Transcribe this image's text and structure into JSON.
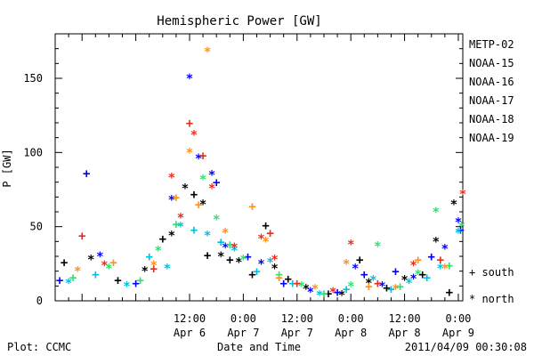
{
  "chart_data": {
    "type": "scatter",
    "title": "Hemispheric Power [GW]",
    "xlabel": "Date and Time",
    "ylabel": "P [GW]",
    "xlim": [
      "2011-04-05T06:00",
      "2011-04-09T01:00"
    ],
    "ylim": [
      0,
      180
    ],
    "yticks": [
      0,
      50,
      100,
      150
    ],
    "xticks": [
      {
        "t": "2011-04-06T12:00",
        "l1": "12:00",
        "l2": "Apr 6"
      },
      {
        "t": "2011-04-07T00:00",
        "l1": "0:00",
        "l2": "Apr 7"
      },
      {
        "t": "2011-04-07T12:00",
        "l1": "12:00",
        "l2": "Apr 7"
      },
      {
        "t": "2011-04-08T00:00",
        "l1": "0:00",
        "l2": "Apr 8"
      },
      {
        "t": "2011-04-08T12:00",
        "l1": "12:00",
        "l2": "Apr 8"
      },
      {
        "t": "2011-04-09T00:00",
        "l1": "0:00",
        "l2": "Apr 9"
      }
    ],
    "grid": false,
    "legend_placement": "right",
    "series": [
      {
        "name": "METP-02",
        "color": "#000000",
        "points": [
          [
            "2011-04-05T08:00",
            26,
            "+"
          ],
          [
            "2011-04-05T14:00",
            28,
            "*"
          ],
          [
            "2011-04-05T20:00",
            14,
            "+"
          ],
          [
            "2011-04-06T02:00",
            20,
            "*"
          ],
          [
            "2011-04-06T06:00",
            42,
            "+"
          ],
          [
            "2011-04-06T08:00",
            44,
            "*"
          ],
          [
            "2011-04-06T11:00",
            76,
            "*"
          ],
          [
            "2011-04-06T13:00",
            72,
            "+"
          ],
          [
            "2011-04-06T15:00",
            65,
            "*"
          ],
          [
            "2011-04-06T16:00",
            31,
            "+"
          ],
          [
            "2011-04-06T19:00",
            30,
            "*"
          ],
          [
            "2011-04-06T21:00",
            28,
            "+"
          ],
          [
            "2011-04-06T23:00",
            26,
            "*"
          ],
          [
            "2011-04-07T02:00",
            18,
            "+"
          ],
          [
            "2011-04-07T05:00",
            51,
            "+"
          ],
          [
            "2011-04-07T07:00",
            22,
            "*"
          ],
          [
            "2011-04-07T10:00",
            15,
            "+"
          ],
          [
            "2011-04-07T14:00",
            8,
            "*"
          ],
          [
            "2011-04-07T19:00",
            5,
            "+"
          ],
          [
            "2011-04-07T22:00",
            4,
            "*"
          ],
          [
            "2011-04-08T02:00",
            28,
            "+"
          ],
          [
            "2011-04-08T04:00",
            12,
            "*"
          ],
          [
            "2011-04-08T08:00",
            9,
            "+"
          ],
          [
            "2011-04-08T12:00",
            14,
            "*"
          ],
          [
            "2011-04-08T16:00",
            18,
            "+"
          ],
          [
            "2011-04-08T19:00",
            40,
            "*"
          ],
          [
            "2011-04-08T22:00",
            6,
            "+"
          ],
          [
            "2011-04-08T23:00",
            65,
            "*"
          ]
        ]
      },
      {
        "name": "NOAA-15",
        "color": "#0000ff",
        "points": [
          [
            "2011-04-05T07:00",
            14,
            "+"
          ],
          [
            "2011-04-05T13:00",
            86,
            "+"
          ],
          [
            "2011-04-05T16:00",
            30,
            "*"
          ],
          [
            "2011-04-06T00:00",
            12,
            "+"
          ],
          [
            "2011-04-06T08:00",
            68,
            "*"
          ],
          [
            "2011-04-06T12:00",
            150,
            "*"
          ],
          [
            "2011-04-06T14:00",
            96,
            "*"
          ],
          [
            "2011-04-06T17:00",
            85,
            "*"
          ],
          [
            "2011-04-06T18:00",
            80,
            "+"
          ],
          [
            "2011-04-06T20:00",
            36,
            "*"
          ],
          [
            "2011-04-07T01:00",
            30,
            "+"
          ],
          [
            "2011-04-07T04:00",
            25,
            "*"
          ],
          [
            "2011-04-07T09:00",
            12,
            "+"
          ],
          [
            "2011-04-07T15:00",
            6,
            "*"
          ],
          [
            "2011-04-07T21:00",
            6,
            "+"
          ],
          [
            "2011-04-08T01:00",
            22,
            "*"
          ],
          [
            "2011-04-08T03:00",
            18,
            "+"
          ],
          [
            "2011-04-08T07:00",
            10,
            "*"
          ],
          [
            "2011-04-08T10:00",
            20,
            "+"
          ],
          [
            "2011-04-08T14:00",
            15,
            "*"
          ],
          [
            "2011-04-08T18:00",
            30,
            "+"
          ],
          [
            "2011-04-08T21:00",
            35,
            "*"
          ],
          [
            "2011-04-09T00:00",
            53,
            "*"
          ],
          [
            "2011-04-09T00:30",
            48,
            "+"
          ]
        ]
      },
      {
        "name": "NOAA-16",
        "color": "#00c0e0",
        "points": [
          [
            "2011-04-05T09:00",
            12,
            "*"
          ],
          [
            "2011-04-05T15:00",
            18,
            "+"
          ],
          [
            "2011-04-05T22:00",
            10,
            "*"
          ],
          [
            "2011-04-06T03:00",
            30,
            "+"
          ],
          [
            "2011-04-06T07:00",
            22,
            "*"
          ],
          [
            "2011-04-06T10:00",
            50,
            "*"
          ],
          [
            "2011-04-06T13:00",
            48,
            "+"
          ],
          [
            "2011-04-06T16:00",
            44,
            "*"
          ],
          [
            "2011-04-06T19:00",
            40,
            "+"
          ],
          [
            "2011-04-06T22:00",
            34,
            "*"
          ],
          [
            "2011-04-07T03:00",
            20,
            "+"
          ],
          [
            "2011-04-07T06:00",
            26,
            "*"
          ],
          [
            "2011-04-07T11:00",
            12,
            "+"
          ],
          [
            "2011-04-07T17:00",
            4,
            "*"
          ],
          [
            "2011-04-07T23:00",
            8,
            "+"
          ],
          [
            "2011-04-08T05:00",
            14,
            "*"
          ],
          [
            "2011-04-08T09:00",
            8,
            "+"
          ],
          [
            "2011-04-08T13:00",
            12,
            "*"
          ],
          [
            "2011-04-08T17:00",
            16,
            "+"
          ],
          [
            "2011-04-08T20:00",
            22,
            "*"
          ],
          [
            "2011-04-09T00:00",
            46,
            "*"
          ]
        ]
      },
      {
        "name": "NOAA-17",
        "color": "#30e070",
        "points": [
          [
            "2011-04-05T10:00",
            16,
            "+"
          ],
          [
            "2011-04-05T18:00",
            22,
            "*"
          ],
          [
            "2011-04-06T01:00",
            14,
            "+"
          ],
          [
            "2011-04-06T05:00",
            34,
            "*"
          ],
          [
            "2011-04-06T09:00",
            52,
            "+"
          ],
          [
            "2011-04-06T15:00",
            82,
            "*"
          ],
          [
            "2011-04-06T18:00",
            55,
            "*"
          ],
          [
            "2011-04-06T21:00",
            38,
            "+"
          ],
          [
            "2011-04-07T00:00",
            28,
            "*"
          ],
          [
            "2011-04-07T08:00",
            18,
            "+"
          ],
          [
            "2011-04-07T13:00",
            10,
            "*"
          ],
          [
            "2011-04-07T18:00",
            5,
            "+"
          ],
          [
            "2011-04-08T00:00",
            10,
            "*"
          ],
          [
            "2011-04-08T06:00",
            37,
            "*"
          ],
          [
            "2011-04-08T11:00",
            10,
            "+"
          ],
          [
            "2011-04-08T15:00",
            18,
            "*"
          ],
          [
            "2011-04-08T19:00",
            60,
            "*"
          ],
          [
            "2011-04-08T22:00",
            24,
            "+"
          ],
          [
            "2011-04-09T00:45",
            50,
            "*"
          ]
        ]
      },
      {
        "name": "NOAA-18",
        "color": "#ff9020",
        "points": [
          [
            "2011-04-05T11:00",
            20,
            "*"
          ],
          [
            "2011-04-05T19:00",
            26,
            "+"
          ],
          [
            "2011-04-06T04:00",
            24,
            "*"
          ],
          [
            "2011-04-06T09:00",
            70,
            "+"
          ],
          [
            "2011-04-06T12:00",
            100,
            "*"
          ],
          [
            "2011-04-06T14:00",
            65,
            "+"
          ],
          [
            "2011-04-06T16:00",
            168,
            "*"
          ],
          [
            "2011-04-06T20:00",
            46,
            "*"
          ],
          [
            "2011-04-07T02:00",
            64,
            "+"
          ],
          [
            "2011-04-07T05:00",
            40,
            "*"
          ],
          [
            "2011-04-07T08:00",
            16,
            "+"
          ],
          [
            "2011-04-07T16:00",
            8,
            "*"
          ],
          [
            "2011-04-07T23:00",
            25,
            "*"
          ],
          [
            "2011-04-08T04:00",
            10,
            "+"
          ],
          [
            "2011-04-08T10:00",
            8,
            "*"
          ],
          [
            "2011-04-08T15:00",
            28,
            "+"
          ],
          [
            "2011-04-08T21:00",
            22,
            "*"
          ]
        ]
      },
      {
        "name": "NOAA-19",
        "color": "#e03020",
        "points": [
          [
            "2011-04-05T12:00",
            44,
            "+"
          ],
          [
            "2011-04-05T17:00",
            24,
            "*"
          ],
          [
            "2011-04-06T04:00",
            22,
            "+"
          ],
          [
            "2011-04-06T08:00",
            83,
            "*"
          ],
          [
            "2011-04-06T10:00",
            56,
            "*"
          ],
          [
            "2011-04-06T12:00",
            120,
            "+"
          ],
          [
            "2011-04-06T13:00",
            112,
            "*"
          ],
          [
            "2011-04-06T15:00",
            98,
            "+"
          ],
          [
            "2011-04-06T17:00",
            76,
            "*"
          ],
          [
            "2011-04-06T22:00",
            36,
            "*"
          ],
          [
            "2011-04-07T04:00",
            42,
            "*"
          ],
          [
            "2011-04-07T06:00",
            46,
            "+"
          ],
          [
            "2011-04-07T07:00",
            28,
            "*"
          ],
          [
            "2011-04-07T12:00",
            12,
            "+"
          ],
          [
            "2011-04-07T20:00",
            6,
            "*"
          ],
          [
            "2011-04-08T00:00",
            38,
            "*"
          ],
          [
            "2011-04-08T06:00",
            12,
            "+"
          ],
          [
            "2011-04-08T14:00",
            24,
            "*"
          ],
          [
            "2011-04-08T20:00",
            28,
            "+"
          ],
          [
            "2011-04-09T01:00",
            72,
            "*"
          ]
        ]
      }
    ],
    "marker_legend": [
      {
        "symbol": "+",
        "label": "south"
      },
      {
        "symbol": "*",
        "label": "north"
      }
    ]
  },
  "footer": {
    "left": "Plot: CCMC",
    "right": "2011/04/09 00:30:08"
  }
}
